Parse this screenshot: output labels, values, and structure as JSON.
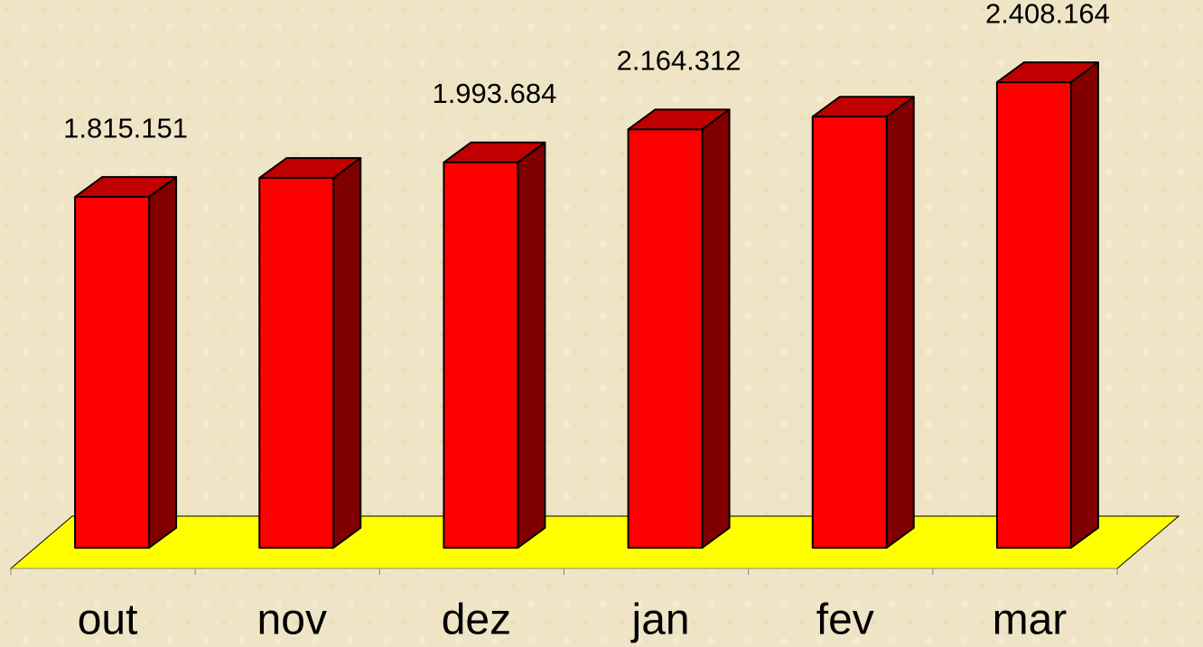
{
  "chart_data": {
    "type": "bar3d",
    "categories": [
      "out",
      "nov",
      "dez",
      "jan",
      "fev",
      "mar"
    ],
    "values": [
      1815151,
      1913000,
      1993684,
      2164312,
      2230000,
      2408164
    ],
    "value_labels": [
      "1.815.151",
      null,
      "1.993.684",
      "2.164.312",
      null,
      "2.408.164"
    ],
    "color": "#ff0000",
    "side_color": "#800000",
    "top_color": "#c00000",
    "floor_color": "#ffff00",
    "ylim": [
      0,
      2600000
    ]
  }
}
